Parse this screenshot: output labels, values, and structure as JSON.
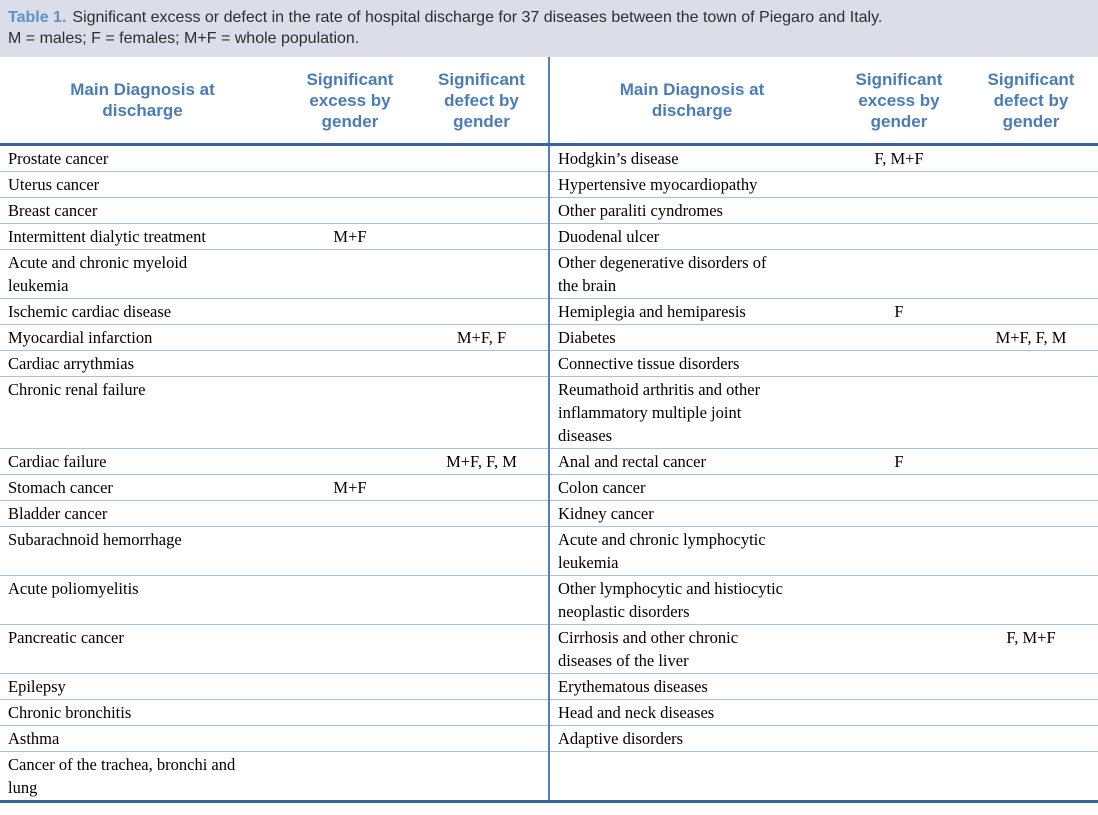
{
  "caption": {
    "label": "Table 1.",
    "line1": "Significant excess or defect in the rate of hospital discharge for 37 diseases between the town of Piegaro and Italy.",
    "line2": "M = males; F = females; M+F = whole population."
  },
  "colors": {
    "caption_band_bg": "#dbdde9",
    "caption_label_blue": "#5d92cb",
    "header_text_blue": "#4a7cb8",
    "dark_rule_blue": "#39639c",
    "light_rule_blue": "#a7c2e0",
    "center_divider_blue": "#4f81bd"
  },
  "header": {
    "left": {
      "diagnosis": "Main Diagnosis at discharge",
      "excess": "Significant excess by gender",
      "defect": "Significant defect by gender"
    },
    "right": {
      "diagnosis": "Main Diagnosis at discharge",
      "excess": "Significant excess by gender",
      "defect": "Significant defect by gender"
    }
  },
  "table": {
    "rows": [
      {
        "left": {
          "diagnosis": "Prostate cancer",
          "excess": "",
          "defect": ""
        },
        "right": {
          "diagnosis": "Hodgkin’s disease",
          "excess": "F, M+F",
          "defect": ""
        }
      },
      {
        "left": {
          "diagnosis": "Uterus cancer",
          "excess": "",
          "defect": ""
        },
        "right": {
          "diagnosis": "Hypertensive myocardiopathy",
          "excess": "",
          "defect": ""
        }
      },
      {
        "left": {
          "diagnosis": "Breast cancer",
          "excess": "",
          "defect": ""
        },
        "right": {
          "diagnosis": "Other paraliti cyndromes",
          "excess": "",
          "defect": ""
        }
      },
      {
        "left": {
          "diagnosis": "Intermittent dialytic treatment",
          "excess": "M+F",
          "defect": ""
        },
        "right": {
          "diagnosis": "Duodenal ulcer",
          "excess": "",
          "defect": ""
        }
      },
      {
        "left": {
          "diagnosis": "Acute and chronic myeloid leukemia",
          "excess": "",
          "defect": ""
        },
        "right": {
          "diagnosis": "Other degenerative disorders of the brain",
          "excess": "",
          "defect": ""
        }
      },
      {
        "left": {
          "diagnosis": "Ischemic cardiac disease",
          "excess": "",
          "defect": ""
        },
        "right": {
          "diagnosis": "Hemiplegia and hemiparesis",
          "excess": "F",
          "defect": ""
        }
      },
      {
        "left": {
          "diagnosis": "Myocardial infarction",
          "excess": "",
          "defect": "M+F, F"
        },
        "right": {
          "diagnosis": "Diabetes",
          "excess": "",
          "defect": "M+F, F, M"
        }
      },
      {
        "left": {
          "diagnosis": "Cardiac arrythmias",
          "excess": "",
          "defect": ""
        },
        "right": {
          "diagnosis": "Connective tissue disorders",
          "excess": "",
          "defect": ""
        }
      },
      {
        "left": {
          "diagnosis": "Chronic renal failure",
          "excess": "",
          "defect": ""
        },
        "right": {
          "diagnosis": "Reumathoid arthritis and other inflammatory multiple joint diseases",
          "excess": "",
          "defect": ""
        }
      },
      {
        "left": {
          "diagnosis": "Cardiac failure",
          "excess": "",
          "defect": "M+F, F, M"
        },
        "right": {
          "diagnosis": "Anal and rectal cancer",
          "excess": "F",
          "defect": ""
        }
      },
      {
        "left": {
          "diagnosis": "Stomach cancer",
          "excess": "M+F",
          "defect": ""
        },
        "right": {
          "diagnosis": "Colon cancer",
          "excess": "",
          "defect": ""
        }
      },
      {
        "left": {
          "diagnosis": "Bladder cancer",
          "excess": "",
          "defect": ""
        },
        "right": {
          "diagnosis": "Kidney cancer",
          "excess": "",
          "defect": ""
        }
      },
      {
        "left": {
          "diagnosis": "Subarachnoid hemorrhage",
          "excess": "",
          "defect": ""
        },
        "right": {
          "diagnosis": "Acute and chronic lymphocytic leukemia",
          "excess": "",
          "defect": ""
        }
      },
      {
        "left": {
          "diagnosis": "Acute poliomyelitis",
          "excess": "",
          "defect": ""
        },
        "right": {
          "diagnosis": "Other lymphocytic and histiocytic neoplastic disorders",
          "excess": "",
          "defect": ""
        }
      },
      {
        "left": {
          "diagnosis": "Pancreatic cancer",
          "excess": "",
          "defect": ""
        },
        "right": {
          "diagnosis": "Cirrhosis and other chronic diseases of the liver",
          "excess": "",
          "defect": "F, M+F"
        }
      },
      {
        "left": {
          "diagnosis": "Epilepsy",
          "excess": "",
          "defect": ""
        },
        "right": {
          "diagnosis": "Erythematous diseases",
          "excess": "",
          "defect": ""
        }
      },
      {
        "left": {
          "diagnosis": "Chronic bronchitis",
          "excess": "",
          "defect": ""
        },
        "right": {
          "diagnosis": "Head and neck diseases",
          "excess": "",
          "defect": ""
        }
      },
      {
        "left": {
          "diagnosis": "Asthma",
          "excess": "",
          "defect": ""
        },
        "right": {
          "diagnosis": "Adaptive disorders",
          "excess": "",
          "defect": ""
        }
      },
      {
        "left": {
          "diagnosis": "Cancer of the trachea, bronchi and lung",
          "excess": "",
          "defect": ""
        },
        "right": {
          "diagnosis": "",
          "excess": "",
          "defect": ""
        }
      }
    ]
  }
}
